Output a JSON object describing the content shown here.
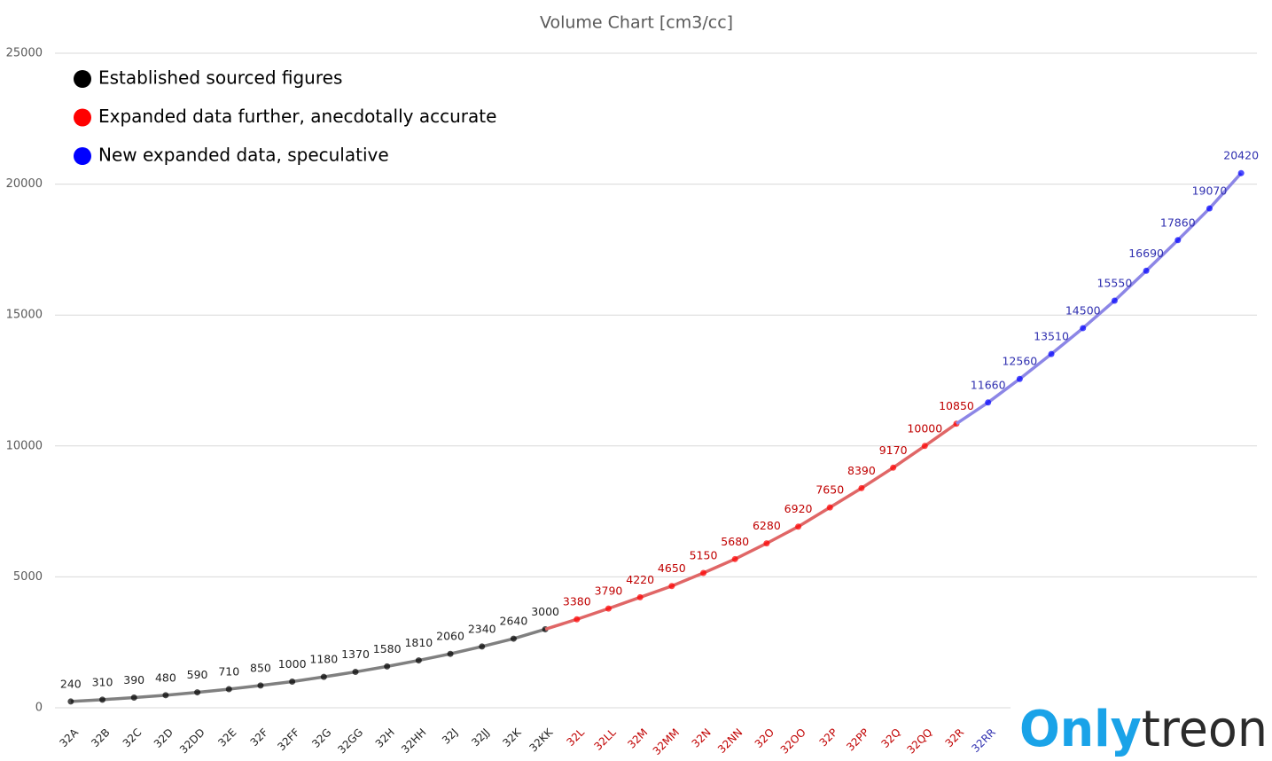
{
  "chart_data": {
    "type": "line",
    "title": "Volume Chart [cm3/cc]",
    "categories": [
      "32A",
      "32B",
      "32C",
      "32D",
      "32DD",
      "32E",
      "32F",
      "32FF",
      "32G",
      "32GG",
      "32H",
      "32HH",
      "32J",
      "32JJ",
      "32K",
      "32KK",
      "32L",
      "32LL",
      "32M",
      "32MM",
      "32N",
      "32NN",
      "32O",
      "32OO",
      "32P",
      "32PP",
      "32Q",
      "32QQ",
      "32R",
      "32RR",
      null,
      null,
      null,
      null,
      null,
      null,
      null,
      null
    ],
    "series": [
      {
        "name": "Established sourced figures",
        "color": "#808080",
        "marker_color": "#000000",
        "label_color": "#222222",
        "values": [
          240,
          310,
          390,
          480,
          590,
          710,
          850,
          1000,
          1180,
          1370,
          1580,
          1810,
          2060,
          2340,
          2640,
          3000,
          null,
          null,
          null,
          null,
          null,
          null,
          null,
          null,
          null,
          null,
          null,
          null,
          null,
          null,
          null,
          null,
          null,
          null,
          null,
          null,
          null,
          null
        ]
      },
      {
        "name": "Expanded data further, anecdotally accurate",
        "color": "#e06666",
        "marker_color": "#ff0000",
        "label_color": "#c00000",
        "values": [
          null,
          null,
          null,
          null,
          null,
          null,
          null,
          null,
          null,
          null,
          null,
          null,
          null,
          null,
          null,
          null,
          3380,
          3790,
          4220,
          4650,
          5150,
          5680,
          6280,
          6920,
          7650,
          8390,
          9170,
          10000,
          10850,
          null,
          null,
          null,
          null,
          null,
          null,
          null,
          null,
          null
        ]
      },
      {
        "name": "New expanded data, speculative",
        "color": "#8c86e6",
        "marker_color": "#0000ff",
        "label_color": "#3030b0",
        "values": [
          null,
          null,
          null,
          null,
          null,
          null,
          null,
          null,
          null,
          null,
          null,
          null,
          null,
          null,
          null,
          null,
          null,
          null,
          null,
          null,
          null,
          null,
          null,
          null,
          null,
          null,
          null,
          null,
          null,
          11660,
          12560,
          13510,
          14500,
          15550,
          16690,
          17860,
          19070,
          20420
        ]
      }
    ],
    "ylim": [
      0,
      25000
    ],
    "yticks": [
      0,
      5000,
      10000,
      15000,
      20000,
      25000
    ],
    "grid": true,
    "legend": "upper left",
    "watermark": [
      "Only",
      "treon"
    ]
  }
}
